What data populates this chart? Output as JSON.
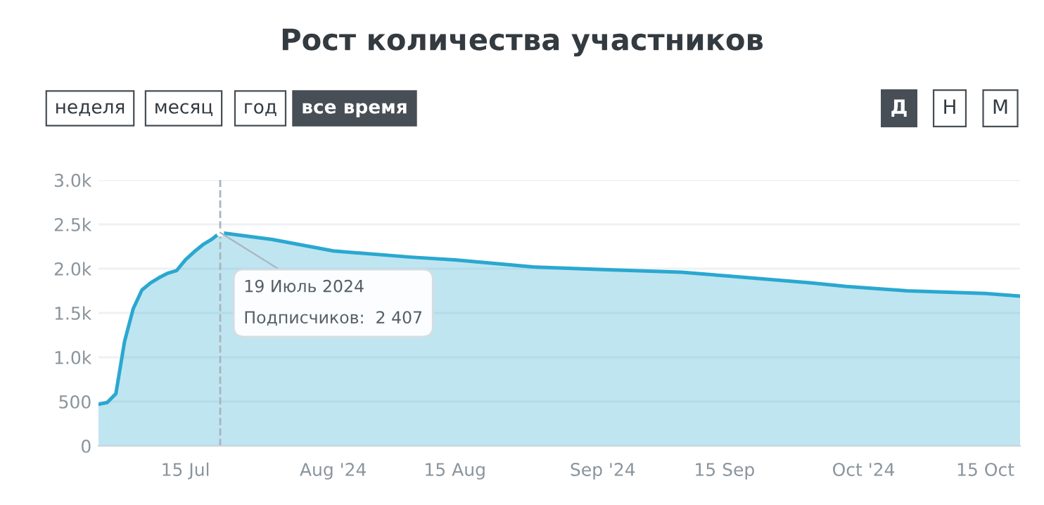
{
  "chart_data": {
    "type": "area",
    "title": "Рост количества участников",
    "x": [
      "2024-07-05",
      "2024-07-06",
      "2024-07-07",
      "2024-07-08",
      "2024-07-09",
      "2024-07-10",
      "2024-07-11",
      "2024-07-12",
      "2024-07-13",
      "2024-07-14",
      "2024-07-15",
      "2024-07-16",
      "2024-07-17",
      "2024-07-18",
      "2024-07-19",
      "2024-07-25",
      "2024-08-01",
      "2024-08-10",
      "2024-08-15",
      "2024-08-24",
      "2024-09-01",
      "2024-09-10",
      "2024-09-15",
      "2024-09-25",
      "2024-09-29",
      "2024-10-06",
      "2024-10-15",
      "2024-10-19"
    ],
    "series": [
      {
        "color": "#2aa8d0",
        "values": [
          470,
          490,
          590,
          1180,
          1550,
          1760,
          1840,
          1900,
          1950,
          1980,
          2100,
          2190,
          2270,
          2330,
          2407,
          2330,
          2200,
          2130,
          2100,
          2020,
          1990,
          1960,
          1920,
          1840,
          1800,
          1750,
          1720,
          1690
        ]
      }
    ],
    "xlim": [
      "2024-07-05",
      "2024-10-19"
    ],
    "xticks": [
      {
        "value": "2024-07-15",
        "label": "15 Jul"
      },
      {
        "value": "2024-08-01",
        "label": "Aug '24"
      },
      {
        "value": "2024-08-15",
        "label": "15 Aug"
      },
      {
        "value": "2024-09-01",
        "label": "Sep '24"
      },
      {
        "value": "2024-09-15",
        "label": "15 Sep"
      },
      {
        "value": "2024-10-01",
        "label": "Oct '24"
      },
      {
        "value": "2024-10-15",
        "label": "15 Oct"
      }
    ],
    "ylim": [
      0,
      3000
    ],
    "yticks": [
      0,
      500,
      {
        "value": 1000,
        "label": "1.0k"
      },
      {
        "value": 1500,
        "label": "1.5k"
      },
      {
        "value": 2000,
        "label": "2.0k"
      },
      {
        "value": 2500,
        "label": "2.5k"
      },
      {
        "value": 3000,
        "label": "3.0k"
      }
    ],
    "grid": "y",
    "legend": false,
    "marker": "none",
    "line_style": "solid",
    "ref_lines": [
      {
        "axis": "x",
        "value": "2024-07-19",
        "color": "#aab4bc",
        "line_style": "dashed"
      }
    ],
    "annotations": [
      {
        "text": "19 Июль 2024\nПодписчиков:  2 407",
        "x": "2024-07-19",
        "y": 2407
      },
      "неделя",
      "месяц",
      "год",
      "все время",
      "Д",
      "Н",
      "М"
    ]
  }
}
